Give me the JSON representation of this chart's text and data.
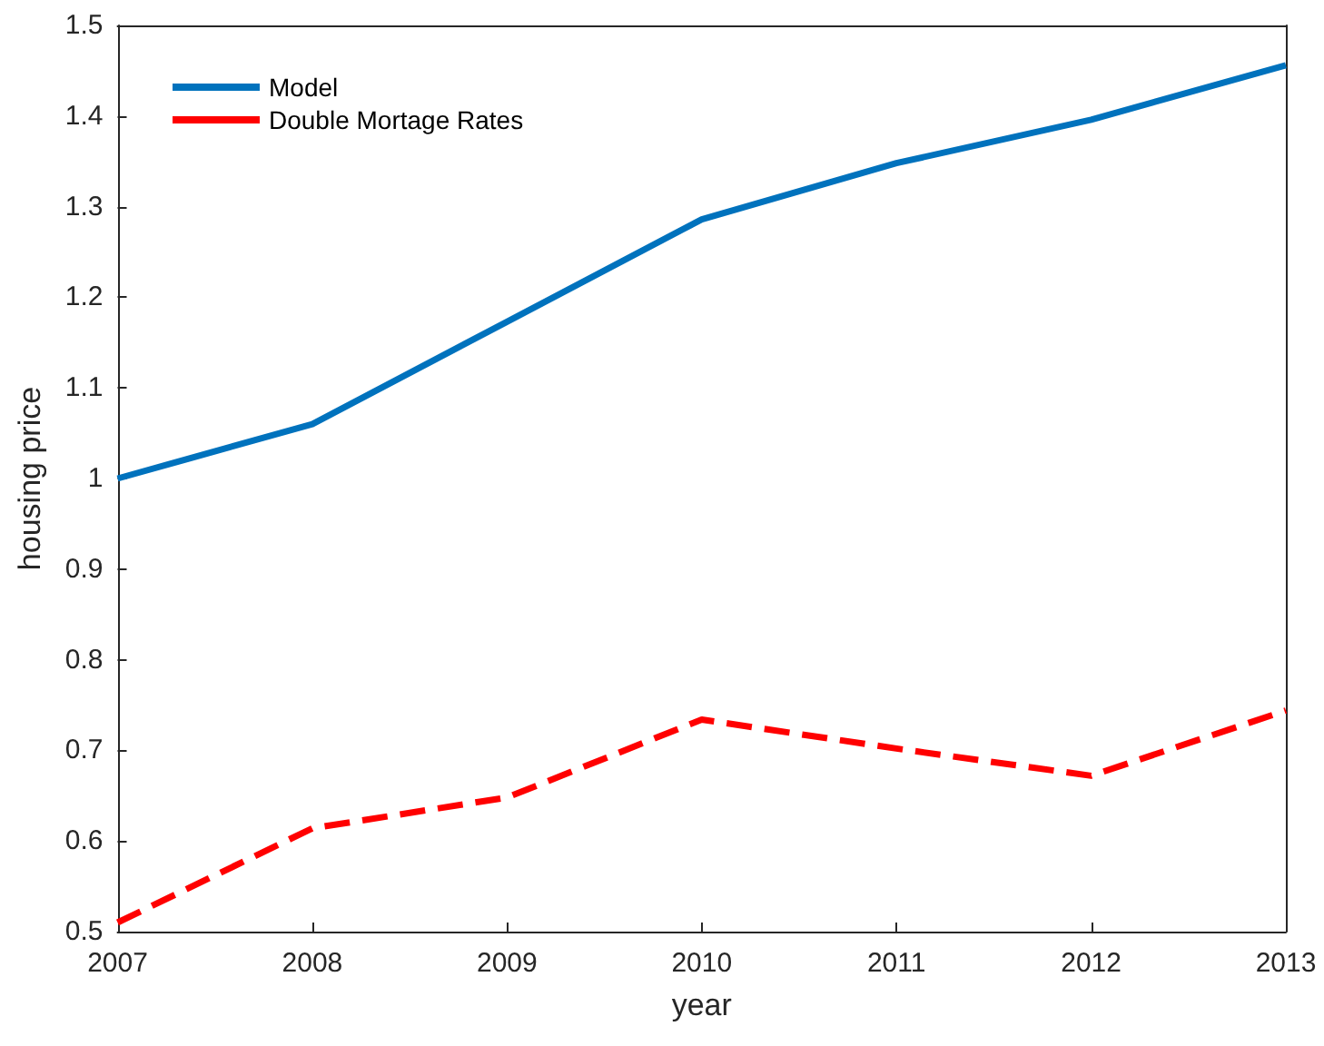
{
  "chart_data": {
    "type": "line",
    "xlabel": "year",
    "ylabel": "housing price",
    "x": [
      2007,
      2008,
      2009,
      2010,
      2011,
      2012,
      2013
    ],
    "series": [
      {
        "name": "Model",
        "color": "#0072bd",
        "line_style": "solid",
        "values": [
          1.0,
          1.06,
          1.173,
          1.286,
          1.348,
          1.396,
          1.456
        ]
      },
      {
        "name": "Double Mortage Rates",
        "color": "#ff0000",
        "line_style": "dashed",
        "values": [
          0.51,
          0.614,
          0.648,
          0.734,
          0.702,
          0.672,
          0.744
        ]
      }
    ],
    "xlim": [
      2007,
      2013
    ],
    "xticks": [
      2007,
      2008,
      2009,
      2010,
      2011,
      2012,
      2013
    ],
    "ylim": [
      0.5,
      1.5
    ],
    "yticks": [
      0.5,
      0.6,
      0.7,
      0.8,
      0.9,
      1,
      1.1,
      1.2,
      1.3,
      1.4,
      1.5
    ],
    "grid": false,
    "legend": "top left",
    "marker": "none"
  }
}
